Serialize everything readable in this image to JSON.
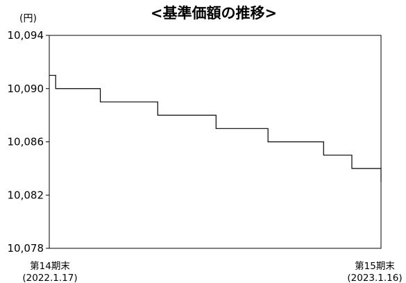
{
  "chart_data": {
    "type": "line",
    "title": "<基準価額の推移>",
    "unit_label": "(円)",
    "ylim": [
      10078,
      10094
    ],
    "y_ticks": [
      "10,094",
      "10,090",
      "10,086",
      "10,082",
      "10,078"
    ],
    "y_tick_values": [
      10094,
      10090,
      10086,
      10082,
      10078
    ],
    "x_start_label": [
      "第14期末",
      "(2022.1.17)"
    ],
    "x_end_label": [
      "第15期末",
      "(2023.1.16)"
    ],
    "x": [
      "2022-01-17",
      "2022-01-24",
      "2022-03-14",
      "2022-05-16",
      "2022-07-19",
      "2022-09-14",
      "2022-11-14",
      "2022-12-15",
      "2023-01-16"
    ],
    "values": [
      10091,
      10090,
      10089,
      10088,
      10087,
      10086,
      10085,
      10084,
      10083
    ],
    "line_shape": "step",
    "grid": false,
    "line_color": "#000000"
  }
}
